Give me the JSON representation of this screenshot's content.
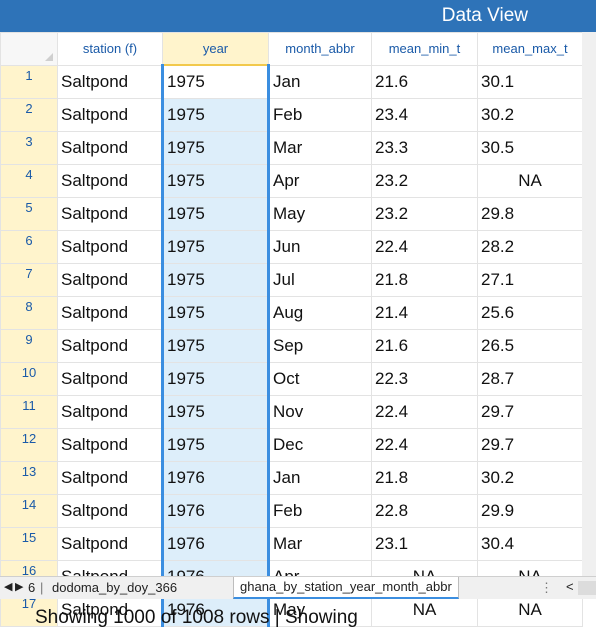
{
  "window": {
    "title": "Data View"
  },
  "columns": [
    {
      "label": ""
    },
    {
      "label": "station (f)"
    },
    {
      "label": "year"
    },
    {
      "label": "month_abbr"
    },
    {
      "label": "mean_min_t"
    },
    {
      "label": "mean_max_t"
    }
  ],
  "rows": [
    {
      "n": "1",
      "station": "Saltpond",
      "year": "1975",
      "month": "Jan",
      "min": "21.6",
      "max": "30.1"
    },
    {
      "n": "2",
      "station": "Saltpond",
      "year": "1975",
      "month": "Feb",
      "min": "23.4",
      "max": "30.2"
    },
    {
      "n": "3",
      "station": "Saltpond",
      "year": "1975",
      "month": "Mar",
      "min": "23.3",
      "max": "30.5"
    },
    {
      "n": "4",
      "station": "Saltpond",
      "year": "1975",
      "month": "Apr",
      "min": "23.2",
      "max": "NA"
    },
    {
      "n": "5",
      "station": "Saltpond",
      "year": "1975",
      "month": "May",
      "min": "23.2",
      "max": "29.8"
    },
    {
      "n": "6",
      "station": "Saltpond",
      "year": "1975",
      "month": "Jun",
      "min": "22.4",
      "max": "28.2"
    },
    {
      "n": "7",
      "station": "Saltpond",
      "year": "1975",
      "month": "Jul",
      "min": "21.8",
      "max": "27.1"
    },
    {
      "n": "8",
      "station": "Saltpond",
      "year": "1975",
      "month": "Aug",
      "min": "21.4",
      "max": "25.6"
    },
    {
      "n": "9",
      "station": "Saltpond",
      "year": "1975",
      "month": "Sep",
      "min": "21.6",
      "max": "26.5"
    },
    {
      "n": "10",
      "station": "Saltpond",
      "year": "1975",
      "month": "Oct",
      "min": "22.3",
      "max": "28.7"
    },
    {
      "n": "11",
      "station": "Saltpond",
      "year": "1975",
      "month": "Nov",
      "min": "22.4",
      "max": "29.7"
    },
    {
      "n": "12",
      "station": "Saltpond",
      "year": "1975",
      "month": "Dec",
      "min": "22.4",
      "max": "29.7"
    },
    {
      "n": "13",
      "station": "Saltpond",
      "year": "1976",
      "month": "Jan",
      "min": "21.8",
      "max": "30.2"
    },
    {
      "n": "14",
      "station": "Saltpond",
      "year": "1976",
      "month": "Feb",
      "min": "22.8",
      "max": "29.9"
    },
    {
      "n": "15",
      "station": "Saltpond",
      "year": "1976",
      "month": "Mar",
      "min": "23.1",
      "max": "30.4"
    },
    {
      "n": "16",
      "station": "Saltpond",
      "year": "1976",
      "month": "Apr",
      "min": "NA",
      "max": "NA"
    },
    {
      "n": "17",
      "station": "Saltpond",
      "year": "1976",
      "month": "May",
      "min": "NA",
      "max": "NA"
    }
  ],
  "tabs": {
    "count": "6",
    "items": [
      "dodoma_by_doy_366",
      "ghana_by_station_year_month_abbr"
    ],
    "active": 1
  },
  "status": {
    "text": "Showing 1000 of 1008 rows | Showing"
  },
  "icons": [
    "first-sheet-icon",
    "next-sheet-icon",
    "more-icon",
    "scroll-left-icon"
  ],
  "colors": {
    "header": "#2e73b8",
    "selection": "#3b8ee0",
    "rowHeader": "#fff4cc"
  }
}
